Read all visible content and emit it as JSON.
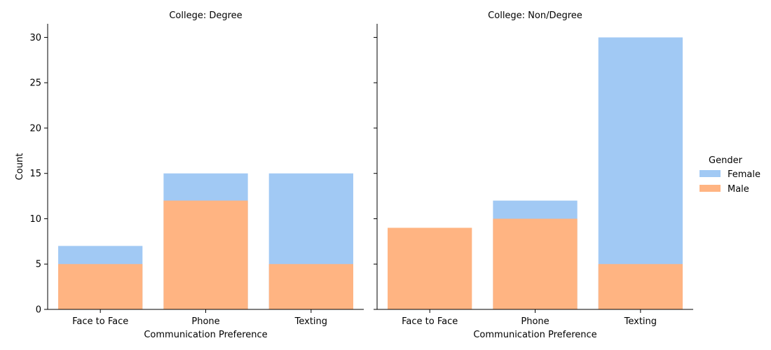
{
  "chart_data": {
    "type": "bar",
    "ylabel": "Count",
    "ylim": [
      0,
      31.5
    ],
    "yticks": [
      0,
      5,
      10,
      15,
      20,
      25,
      30
    ],
    "legend": {
      "title": "Gender",
      "placement": "right",
      "entries": [
        {
          "name": "Female",
          "color": "#a1c9f4"
        },
        {
          "name": "Male",
          "color": "#ffb482"
        }
      ]
    },
    "panels": [
      {
        "title": "College: Degree",
        "xlabel": "Communication Preference",
        "categories": [
          "Face to Face",
          "Phone",
          "Texting"
        ],
        "series": [
          {
            "name": "Female",
            "values": [
              7,
              15,
              15
            ]
          },
          {
            "name": "Male",
            "values": [
              5,
              12,
              5
            ]
          }
        ]
      },
      {
        "title": "College: Non/Degree",
        "xlabel": "Communication Preference",
        "categories": [
          "Face to Face",
          "Phone",
          "Texting"
        ],
        "series": [
          {
            "name": "Female",
            "values": [
              0,
              12,
              30
            ]
          },
          {
            "name": "Male",
            "values": [
              9,
              10,
              5
            ]
          }
        ]
      }
    ]
  }
}
